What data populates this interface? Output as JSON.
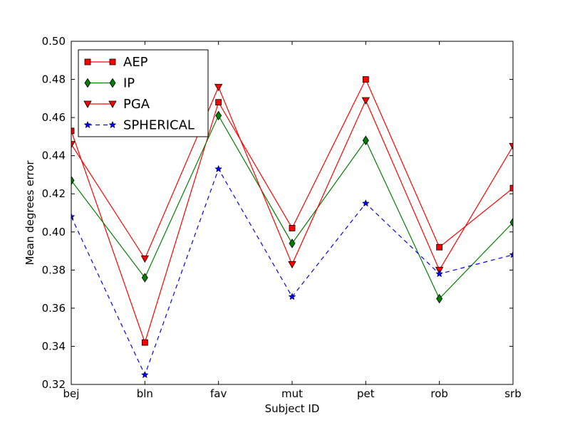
{
  "chart_data": {
    "type": "line",
    "title": "",
    "xlabel": "Subject ID",
    "ylabel": "Mean degrees error",
    "categories": [
      "bej",
      "bln",
      "fav",
      "mut",
      "pet",
      "rob",
      "srb"
    ],
    "ylim": [
      0.32,
      0.5
    ],
    "yticks": [
      "0.32",
      "0.34",
      "0.36",
      "0.38",
      "0.40",
      "0.42",
      "0.44",
      "0.46",
      "0.48",
      "0.50"
    ],
    "grid": false,
    "legend_position": "top-left",
    "series": [
      {
        "name": "AEP",
        "color": "#ff0000",
        "marker": "square",
        "dash": "solid",
        "values": [
          0.453,
          0.342,
          0.468,
          0.402,
          0.48,
          0.392,
          0.423
        ]
      },
      {
        "name": "IP",
        "color": "#008000",
        "marker": "diamond",
        "dash": "solid",
        "values": [
          0.427,
          0.376,
          0.461,
          0.394,
          0.448,
          0.365,
          0.405
        ]
      },
      {
        "name": "PGA",
        "color": "#ff0000",
        "marker": "triangle-down",
        "dash": "solid",
        "values": [
          0.446,
          0.386,
          0.476,
          0.383,
          0.469,
          0.38,
          0.445
        ]
      },
      {
        "name": "SPHERICAL",
        "color": "#0000ff",
        "marker": "star",
        "dash": "dashed",
        "values": [
          0.408,
          0.325,
          0.433,
          0.366,
          0.415,
          0.378,
          0.388
        ]
      }
    ]
  }
}
